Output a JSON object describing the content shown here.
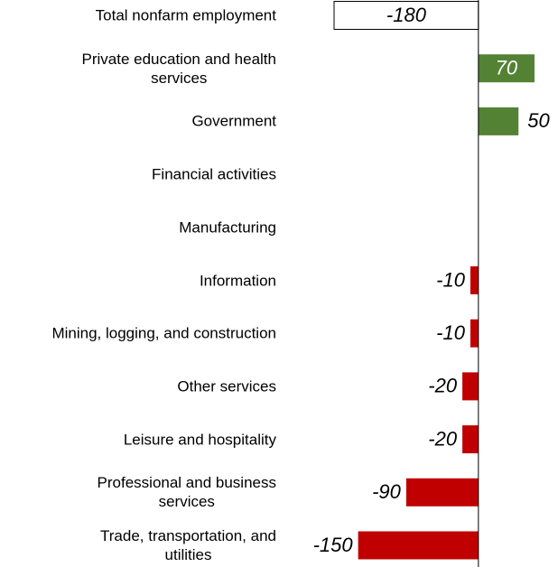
{
  "chart_data": {
    "type": "bar",
    "orientation": "horizontal",
    "categories": [
      "Total nonfarm employment",
      "Private education and health\nservices",
      "Government",
      "Financial activities",
      "Manufacturing",
      "Information",
      "Mining, logging, and construction",
      "Other services",
      "Leisure and hospitality",
      "Professional and business\nservices",
      "Trade, transportation, and\nutilities"
    ],
    "values": [
      -180,
      70,
      50,
      0,
      0,
      -10,
      -10,
      -20,
      -20,
      -90,
      -150
    ],
    "colors": [
      "#ffffff",
      "#548235",
      "#548235",
      "#548235",
      "#548235",
      "#c00000",
      "#c00000",
      "#c00000",
      "#c00000",
      "#c00000",
      "#c00000"
    ],
    "xlim": [
      -180,
      70
    ]
  }
}
